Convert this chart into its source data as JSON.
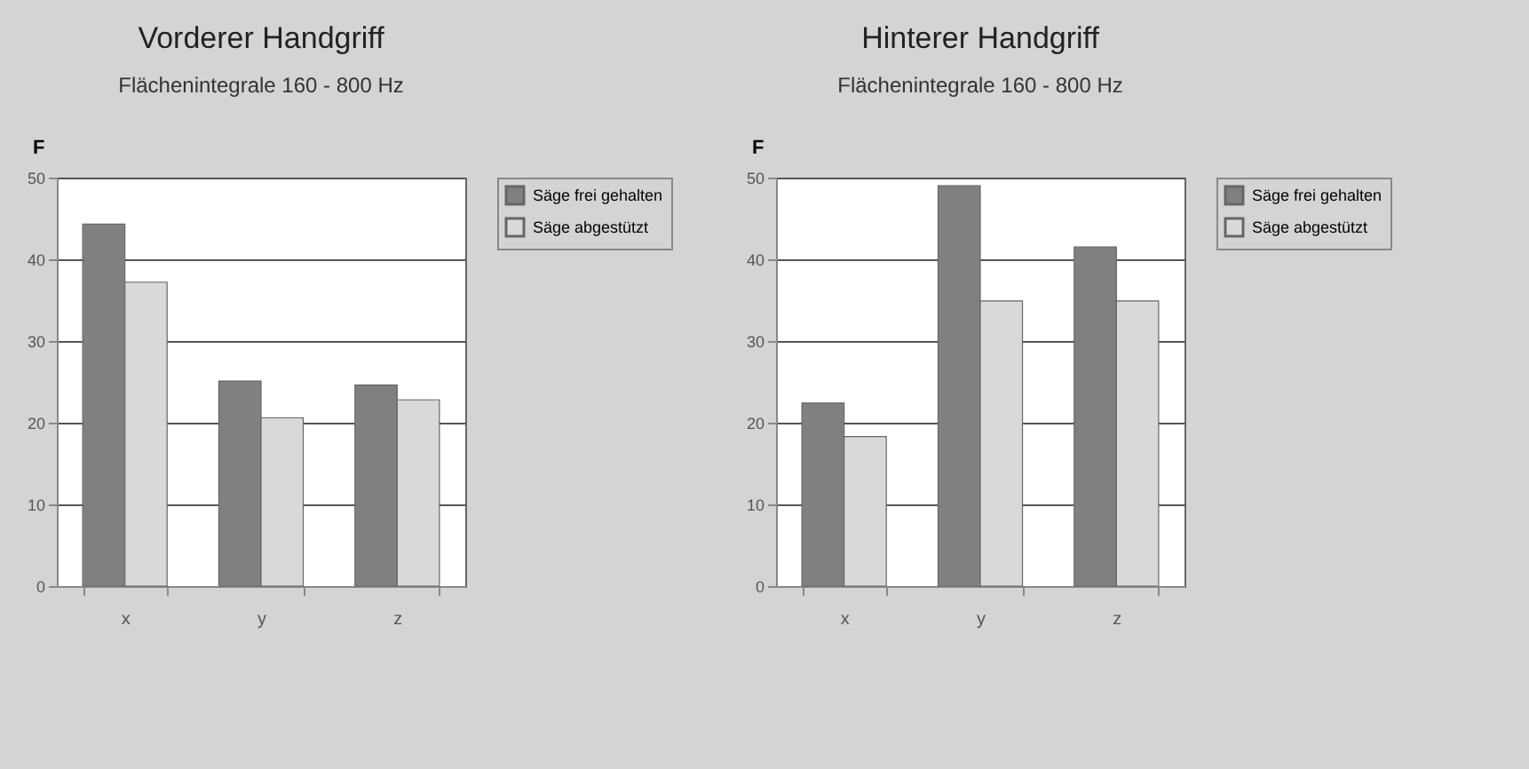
{
  "chart_data": [
    {
      "type": "bar",
      "title": "Vorderer Handgriff",
      "subtitle": "Flächenintegrale 160 - 800 Hz",
      "ylabel": "F",
      "categories": [
        "x",
        "y",
        "z"
      ],
      "series": [
        {
          "name": "Säge frei gehalten",
          "color": "#808080",
          "values": [
            44.3,
            25.1,
            24.6
          ]
        },
        {
          "name": "Säge abgestützt",
          "color": "#d9d9d9",
          "values": [
            37.2,
            20.6,
            22.8
          ]
        }
      ],
      "ylim": [
        0,
        50
      ],
      "yticks": [
        0,
        10,
        20,
        30,
        40,
        50
      ],
      "grid": "y",
      "legend": "right"
    },
    {
      "type": "bar",
      "title": "Hinterer Handgriff",
      "subtitle": "Flächenintegrale 160 - 800 Hz",
      "ylabel": "F",
      "categories": [
        "x",
        "y",
        "z"
      ],
      "series": [
        {
          "name": "Säge frei gehalten",
          "color": "#808080",
          "values": [
            22.4,
            49.0,
            41.5
          ]
        },
        {
          "name": "Säge abgestützt",
          "color": "#d9d9d9",
          "values": [
            18.3,
            34.9,
            34.9
          ]
        }
      ],
      "ylim": [
        0,
        50
      ],
      "yticks": [
        0,
        10,
        20,
        30,
        40,
        50
      ],
      "grid": "y",
      "legend": "right"
    }
  ]
}
